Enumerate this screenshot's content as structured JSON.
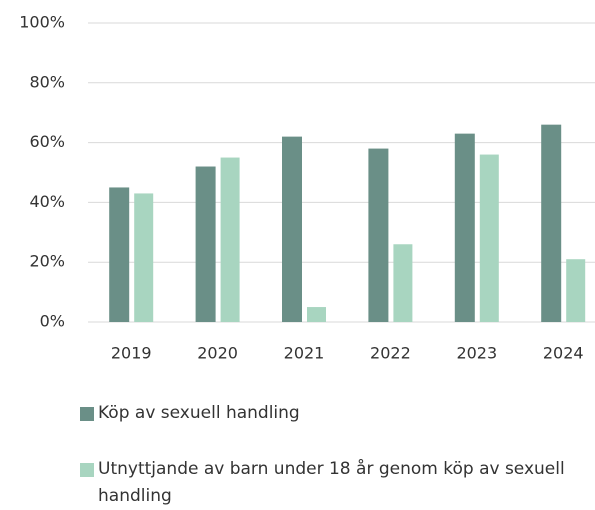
{
  "chart_data": {
    "type": "bar",
    "categories": [
      "2019",
      "2020",
      "2021",
      "2022",
      "2023",
      "2024"
    ],
    "series": [
      {
        "name": "Köp av sexuell handling",
        "color": "#6a8f87",
        "values": [
          45,
          52,
          62,
          58,
          63,
          66
        ]
      },
      {
        "name": "Utnyttjande av barn under 18 år genom köp av sexuell handling",
        "color": "#a8d5c0",
        "values": [
          43,
          55,
          5,
          26,
          56,
          21
        ]
      }
    ],
    "ylim": [
      0,
      100
    ],
    "yticks": [
      {
        "value": 0,
        "label": "0%"
      },
      {
        "value": 20,
        "label": "20%"
      },
      {
        "value": 40,
        "label": "40%"
      },
      {
        "value": 60,
        "label": "60%"
      },
      {
        "value": 80,
        "label": "80%"
      },
      {
        "value": 100,
        "label": "100%"
      }
    ],
    "grid": true
  }
}
